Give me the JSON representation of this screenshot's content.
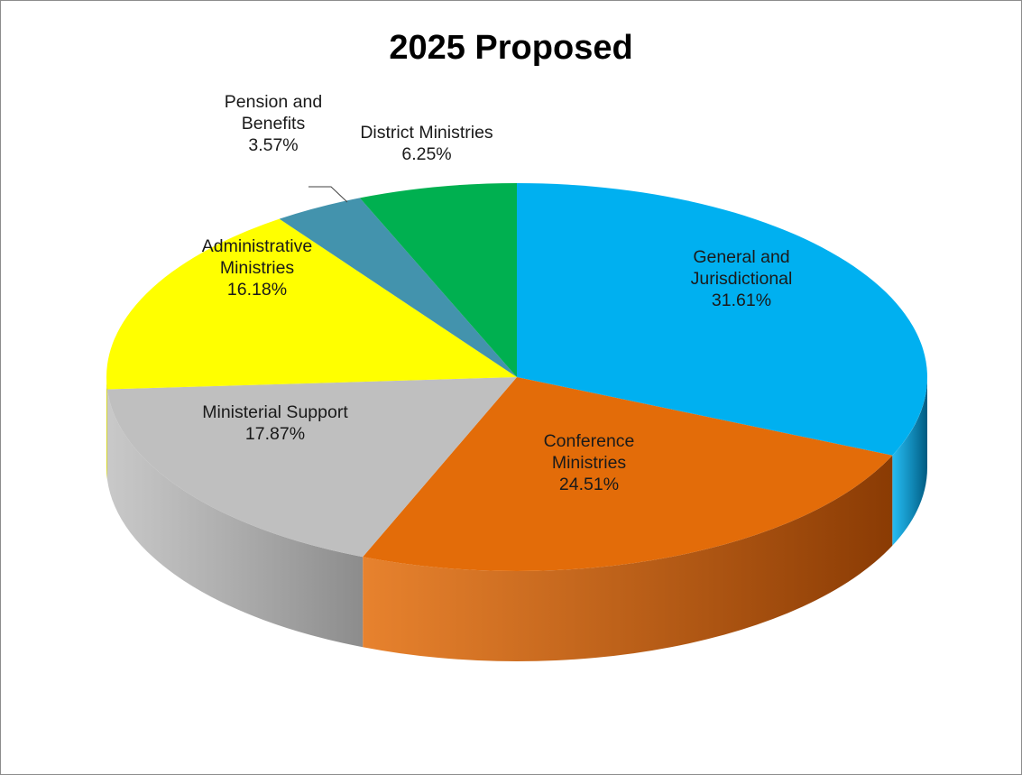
{
  "chart_data": {
    "type": "pie",
    "style": "3d",
    "title": "2025 Proposed",
    "slices": [
      {
        "name": "General and Jurisdictional",
        "value": 31.61,
        "label_lines": [
          "General and",
          "Jurisdictional",
          "31.61%"
        ],
        "color": "#00b0f0",
        "side_color": "#005a80"
      },
      {
        "name": "Conference Ministries",
        "value": 24.51,
        "label_lines": [
          "Conference",
          "Ministries",
          "24.51%"
        ],
        "color": "#e36c09",
        "side_color": "#8a3b04"
      },
      {
        "name": "Ministerial Support",
        "value": 17.87,
        "label_lines": [
          "Ministerial Support",
          "17.87%"
        ],
        "color": "#bfbfbf",
        "side_color": "#8c8c8c"
      },
      {
        "name": "Administrative Ministries",
        "value": 16.18,
        "label_lines": [
          "Administrative",
          "Ministries",
          "16.18%"
        ],
        "color": "#ffff00",
        "side_color": "#a6a600"
      },
      {
        "name": "Pension and Benefits",
        "value": 3.57,
        "label_lines": [
          "Pension and",
          "Benefits",
          "3.57%"
        ],
        "color": "#4393ad",
        "side_color": "#2a5f70"
      },
      {
        "name": "District Ministries",
        "value": 6.25,
        "label_lines": [
          "District Ministries",
          "6.25%"
        ],
        "color": "#00b050",
        "side_color": "#006b30"
      }
    ]
  }
}
